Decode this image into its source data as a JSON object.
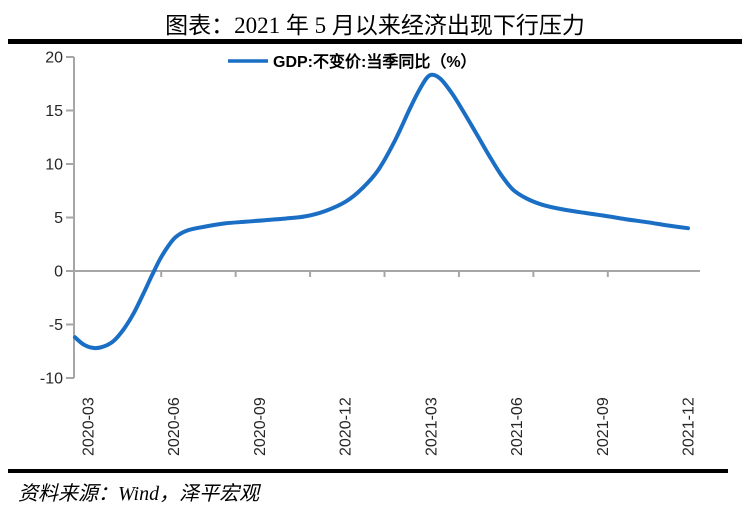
{
  "title": "图表：2021 年 5 月以来经济出现下行压力",
  "source": "资料来源：Wind，泽平宏观",
  "legend": {
    "label": "GDP:不变价:当季同比（%）"
  },
  "colors": {
    "line": "#1a6fc4",
    "axis": "#a6a6a6",
    "tick_text": "#262626",
    "rule": "#000000"
  },
  "chart_data": {
    "type": "line",
    "title": "图表：2021 年 5 月以来经济出现下行压力",
    "series": [
      {
        "name": "GDP:不变价:当季同比（%）",
        "values": [
          -6.8,
          3.2,
          4.9,
          6.5,
          18.3,
          7.9,
          4.9,
          4.0
        ]
      }
    ],
    "categories": [
      "2020-03",
      "2020-06",
      "2020-09",
      "2020-12",
      "2021-03",
      "2021-06",
      "2021-09",
      "2021-12"
    ],
    "xlabel": "",
    "ylabel": "",
    "ylim": [
      -10,
      20
    ],
    "yticks": [
      20,
      15,
      10,
      5,
      0,
      -5,
      -10
    ],
    "grid": "zero-line-only",
    "legend_position": "top-center",
    "smoothed": true,
    "curve_samples": [
      [
        75,
        -6.2
      ],
      [
        84,
        -6.9
      ],
      [
        94,
        -7.2
      ],
      [
        104,
        -7.05
      ],
      [
        114,
        -6.5
      ],
      [
        124,
        -5.4
      ],
      [
        134,
        -3.9
      ],
      [
        144,
        -2.0
      ],
      [
        152,
        -0.4
      ],
      [
        160,
        1.1
      ],
      [
        168,
        2.3
      ],
      [
        176,
        3.2
      ],
      [
        188,
        3.8
      ],
      [
        205,
        4.15
      ],
      [
        225,
        4.45
      ],
      [
        245,
        4.6
      ],
      [
        265,
        4.75
      ],
      [
        285,
        4.9
      ],
      [
        305,
        5.1
      ],
      [
        325,
        5.6
      ],
      [
        346,
        6.5
      ],
      [
        362,
        7.7
      ],
      [
        378,
        9.4
      ],
      [
        395,
        12.2
      ],
      [
        410,
        15.2
      ],
      [
        421,
        17.2
      ],
      [
        430,
        18.3
      ],
      [
        440,
        18.0
      ],
      [
        452,
        16.6
      ],
      [
        464,
        14.8
      ],
      [
        476,
        12.9
      ],
      [
        489,
        10.8
      ],
      [
        501,
        9.0
      ],
      [
        513,
        7.6
      ],
      [
        526,
        6.8
      ],
      [
        542,
        6.2
      ],
      [
        560,
        5.8
      ],
      [
        580,
        5.5
      ],
      [
        602,
        5.2
      ],
      [
        625,
        4.85
      ],
      [
        648,
        4.55
      ],
      [
        668,
        4.25
      ],
      [
        688,
        4.0
      ]
    ]
  }
}
